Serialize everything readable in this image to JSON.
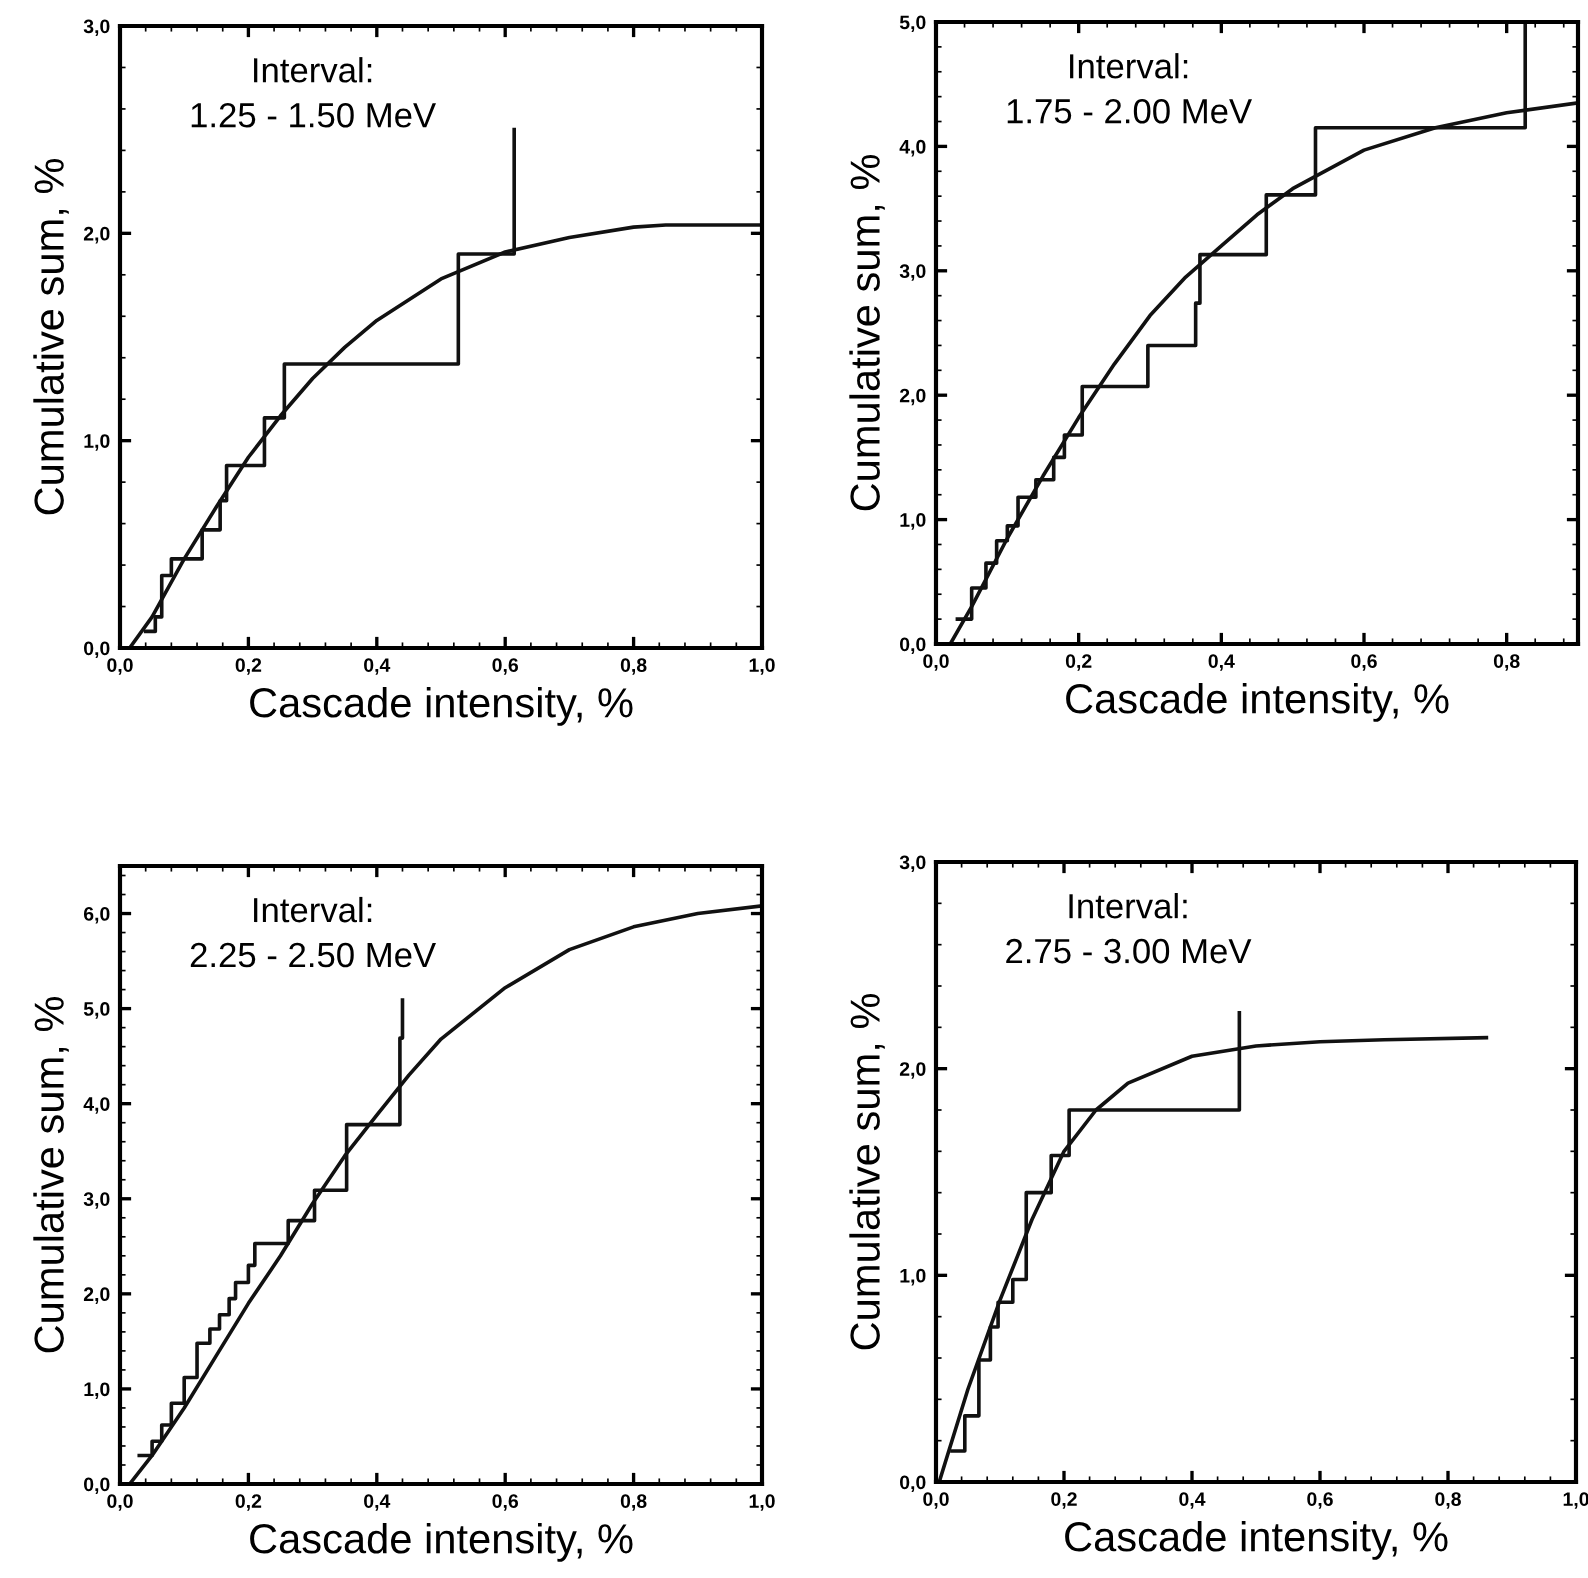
{
  "chart_data": [
    {
      "type": "line",
      "xlabel": "Cascade intensity, %",
      "ylabel": "Cumulative sum, %",
      "annotations": [
        "Interval:\n1.25 - 1.50 MeV"
      ],
      "xlim": [
        0,
        1.0
      ],
      "ylim": [
        0,
        3.0
      ],
      "xticks": [
        {
          "value": 0,
          "label": "0,0"
        },
        {
          "value": 0.2,
          "label": "0,2"
        },
        {
          "value": 0.4,
          "label": "0,4"
        },
        {
          "value": 0.6,
          "label": "0,6"
        },
        {
          "value": 0.8,
          "label": "0,8"
        },
        {
          "value": 1.0,
          "label": "1,0"
        }
      ],
      "yticks": [
        {
          "value": 0,
          "label": "0,0"
        },
        {
          "value": 1.0,
          "label": "1,0"
        },
        {
          "value": 2.0,
          "label": "2,0"
        },
        {
          "value": 3.0,
          "label": "3,0"
        }
      ],
      "grid": false,
      "series": [
        {
          "type": "step",
          "color": "#111111",
          "x": [
            0.04,
            0.055,
            0.065,
            0.08,
            0.128,
            0.156,
            0.166,
            0.225,
            0.256,
            0.527,
            0.614
          ],
          "values": [
            0.08,
            0.15,
            0.35,
            0.43,
            0.57,
            0.71,
            0.88,
            1.11,
            1.37,
            1.9,
            2.5
          ]
        },
        {
          "color": "#111111",
          "x": [
            0.015,
            0.05,
            0.1,
            0.15,
            0.2,
            0.25,
            0.3,
            0.35,
            0.4,
            0.5,
            0.6,
            0.7,
            0.8,
            0.85,
            1.0
          ],
          "values": [
            0,
            0.15,
            0.43,
            0.68,
            0.92,
            1.12,
            1.3,
            1.45,
            1.58,
            1.78,
            1.91,
            1.98,
            2.03,
            2.04,
            2.04
          ]
        }
      ]
    },
    {
      "type": "line",
      "xlabel": "Cascade intensity, %",
      "ylabel": "Cumulative sum, %",
      "annotations": [
        "Interval:\n1.75 - 2.00 MeV"
      ],
      "xlim": [
        0,
        0.9
      ],
      "ylim": [
        0,
        5.0
      ],
      "xticks": [
        {
          "value": 0,
          "label": "0,0"
        },
        {
          "value": 0.2,
          "label": "0,2"
        },
        {
          "value": 0.4,
          "label": "0,4"
        },
        {
          "value": 0.6,
          "label": "0,6"
        },
        {
          "value": 0.8,
          "label": "0,8"
        }
      ],
      "yticks": [
        {
          "value": 0,
          "label": "0,0"
        },
        {
          "value": 1.0,
          "label": "1,0"
        },
        {
          "value": 2.0,
          "label": "2,0"
        },
        {
          "value": 3.0,
          "label": "3,0"
        },
        {
          "value": 4.0,
          "label": "4,0"
        },
        {
          "value": 5.0,
          "label": "5,0"
        }
      ],
      "grid": false,
      "series": [
        {
          "type": "step",
          "color": "#111111",
          "x": [
            0.03,
            0.05,
            0.07,
            0.085,
            0.1,
            0.115,
            0.14,
            0.165,
            0.18,
            0.205,
            0.297,
            0.364,
            0.37,
            0.463,
            0.532,
            0.826
          ],
          "values": [
            0.2,
            0.45,
            0.65,
            0.83,
            0.95,
            1.18,
            1.32,
            1.5,
            1.68,
            2.07,
            2.4,
            2.74,
            3.13,
            3.61,
            4.15,
            5.0
          ]
        },
        {
          "color": "#111111",
          "x": [
            0.02,
            0.05,
            0.1,
            0.15,
            0.2,
            0.25,
            0.3,
            0.35,
            0.4,
            0.45,
            0.5,
            0.6,
            0.7,
            0.8,
            0.9
          ],
          "values": [
            0,
            0.3,
            0.85,
            1.35,
            1.82,
            2.25,
            2.64,
            2.95,
            3.2,
            3.45,
            3.66,
            3.97,
            4.15,
            4.27,
            4.35
          ]
        }
      ]
    },
    {
      "type": "line",
      "xlabel": "Cascade intensity, %",
      "ylabel": "Cumulative sum, %",
      "annotations": [
        "Interval:\n2.25 - 2.50 MeV"
      ],
      "xlim": [
        0,
        1.0
      ],
      "ylim": [
        0,
        6.5
      ],
      "xticks": [
        {
          "value": 0,
          "label": "0,0"
        },
        {
          "value": 0.2,
          "label": "0,2"
        },
        {
          "value": 0.4,
          "label": "0,4"
        },
        {
          "value": 0.6,
          "label": "0,6"
        },
        {
          "value": 0.8,
          "label": "0,8"
        },
        {
          "value": 1.0,
          "label": "1,0"
        }
      ],
      "yticks": [
        {
          "value": 0,
          "label": "0,0"
        },
        {
          "value": 1.0,
          "label": "1,0"
        },
        {
          "value": 2.0,
          "label": "2,0"
        },
        {
          "value": 3.0,
          "label": "3,0"
        },
        {
          "value": 4.0,
          "label": "4,0"
        },
        {
          "value": 5.0,
          "label": "5,0"
        },
        {
          "value": 6.0,
          "label": "6,0"
        }
      ],
      "grid": false,
      "series": [
        {
          "type": "step",
          "color": "#111111",
          "x": [
            0.03,
            0.05,
            0.065,
            0.08,
            0.1,
            0.12,
            0.14,
            0.155,
            0.17,
            0.18,
            0.2,
            0.21,
            0.262,
            0.303,
            0.353,
            0.436,
            0.44
          ],
          "values": [
            0.3,
            0.45,
            0.62,
            0.85,
            1.12,
            1.48,
            1.63,
            1.78,
            1.95,
            2.12,
            2.3,
            2.53,
            2.77,
            3.09,
            3.78,
            4.69,
            5.09
          ]
        },
        {
          "color": "#111111",
          "x": [
            0.015,
            0.05,
            0.1,
            0.15,
            0.2,
            0.25,
            0.3,
            0.35,
            0.4,
            0.45,
            0.5,
            0.6,
            0.7,
            0.8,
            0.9,
            1.0
          ],
          "values": [
            0,
            0.3,
            0.8,
            1.35,
            1.9,
            2.4,
            2.95,
            3.45,
            3.88,
            4.3,
            4.68,
            5.22,
            5.62,
            5.86,
            6.0,
            6.08
          ]
        }
      ]
    },
    {
      "type": "line",
      "xlabel": "Cascade intensity, %",
      "ylabel": "Cumulative sum, %",
      "annotations": [
        "Interval:\n2.75 - 3.00 MeV"
      ],
      "xlim": [
        0,
        1.0
      ],
      "ylim": [
        0,
        3.0
      ],
      "xticks": [
        {
          "value": 0,
          "label": "0,0"
        },
        {
          "value": 0.2,
          "label": "0,2"
        },
        {
          "value": 0.4,
          "label": "0,4"
        },
        {
          "value": 0.6,
          "label": "0,6"
        },
        {
          "value": 0.8,
          "label": "0,8"
        },
        {
          "value": 1.0,
          "label": "1,0"
        }
      ],
      "yticks": [
        {
          "value": 0,
          "label": "0,0"
        },
        {
          "value": 1.0,
          "label": "1,0"
        },
        {
          "value": 2.0,
          "label": "2,0"
        },
        {
          "value": 3.0,
          "label": "3,0"
        }
      ],
      "grid": false,
      "series": [
        {
          "type": "step",
          "color": "#111111",
          "x": [
            0.025,
            0.045,
            0.067,
            0.085,
            0.097,
            0.12,
            0.141,
            0.18,
            0.208,
            0.474
          ],
          "values": [
            0.15,
            0.32,
            0.59,
            0.75,
            0.87,
            0.98,
            1.4,
            1.58,
            1.8,
            2.27
          ]
        },
        {
          "color": "#111111",
          "x": [
            0.005,
            0.05,
            0.1,
            0.15,
            0.2,
            0.25,
            0.3,
            0.4,
            0.5,
            0.6,
            0.7,
            0.86
          ],
          "values": [
            0,
            0.45,
            0.88,
            1.27,
            1.6,
            1.8,
            1.93,
            2.06,
            2.11,
            2.13,
            2.14,
            2.15
          ]
        }
      ]
    }
  ]
}
